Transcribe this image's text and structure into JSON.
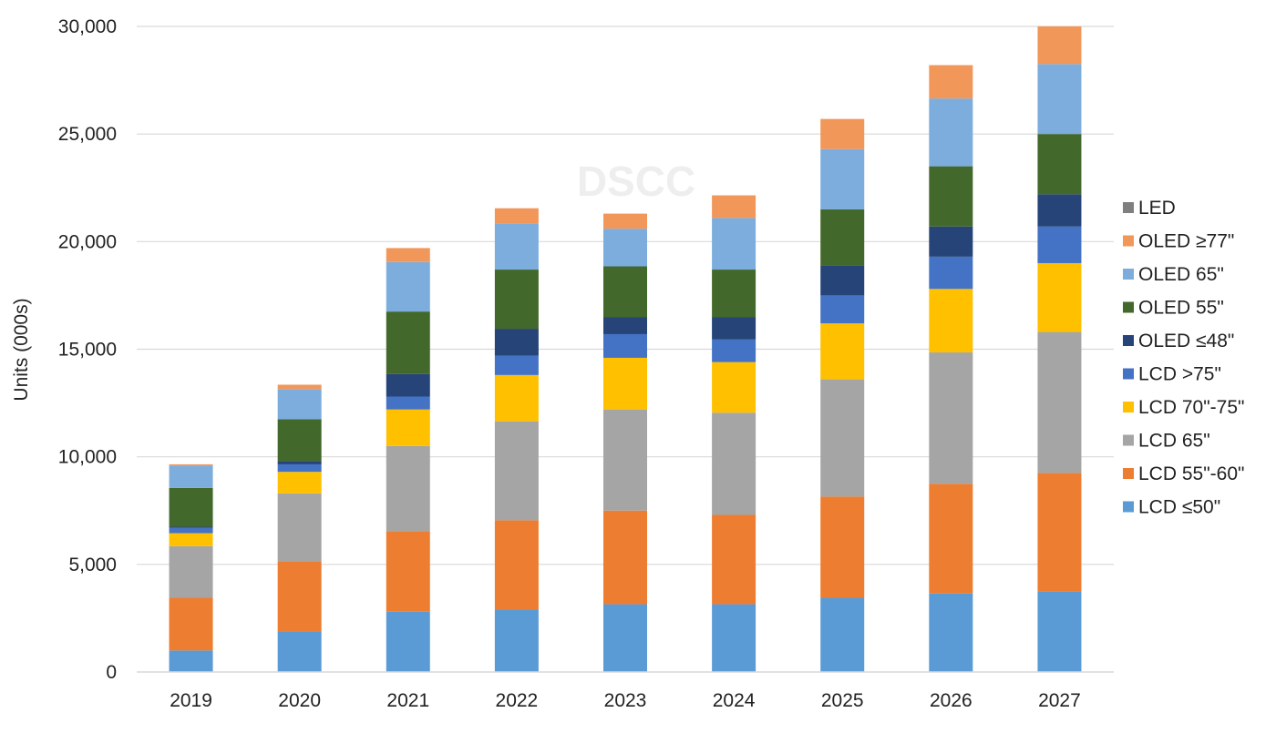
{
  "chart_data": {
    "type": "bar",
    "stacked": true,
    "categories": [
      "2019",
      "2020",
      "2021",
      "2022",
      "2023",
      "2024",
      "2025",
      "2026",
      "2027"
    ],
    "series": [
      {
        "name": "LCD  ≤50\"",
        "color": "#5b9bd5",
        "values": [
          1000,
          1900,
          2800,
          2900,
          3150,
          3150,
          3450,
          3650,
          3750
        ]
      },
      {
        "name": "LCD 55\"-60\"",
        "color": "#ed7d31",
        "values": [
          2450,
          3250,
          3750,
          4150,
          4350,
          4150,
          4700,
          5100,
          5500
        ]
      },
      {
        "name": "LCD 65\"",
        "color": "#a5a5a5",
        "values": [
          2400,
          3150,
          3950,
          4600,
          4700,
          4750,
          5450,
          6100,
          6550
        ]
      },
      {
        "name": "LCD 70\"-75\"",
        "color": "#ffc000",
        "values": [
          600,
          1000,
          1700,
          2150,
          2400,
          2350,
          2600,
          2950,
          3200
        ]
      },
      {
        "name": "LCD >75\"",
        "color": "#4472c4",
        "values": [
          250,
          350,
          600,
          900,
          1100,
          1050,
          1300,
          1500,
          1700
        ]
      },
      {
        "name": "OLED  ≤48\"",
        "color": "#264478",
        "values": [
          50,
          150,
          1050,
          1250,
          800,
          1050,
          1400,
          1400,
          1500
        ]
      },
      {
        "name": "OLED 55\"",
        "color": "#43682b",
        "values": [
          1800,
          1950,
          2900,
          2750,
          2350,
          2200,
          2600,
          2800,
          2800
        ]
      },
      {
        "name": "OLED 65\"",
        "color": "#7caddc",
        "values": [
          1050,
          1400,
          2300,
          2150,
          1750,
          2400,
          2800,
          3150,
          3250
        ]
      },
      {
        "name": "OLED ≥77\"",
        "color": "#f1975a",
        "values": [
          50,
          200,
          650,
          700,
          700,
          1050,
          1400,
          1550,
          1750
        ]
      },
      {
        "name": "LED",
        "color": "#7f7f7f",
        "values": [
          0,
          0,
          0,
          0,
          0,
          0,
          0,
          0,
          0
        ]
      }
    ],
    "ylabel": "Units (000s)",
    "yticks": [
      "0",
      "5,000",
      "10,000",
      "15,000",
      "20,000",
      "25,000",
      "30,000"
    ],
    "ylim": [
      0,
      30000
    ],
    "grid": true,
    "legend_position": "right",
    "watermark": "DSCC"
  }
}
